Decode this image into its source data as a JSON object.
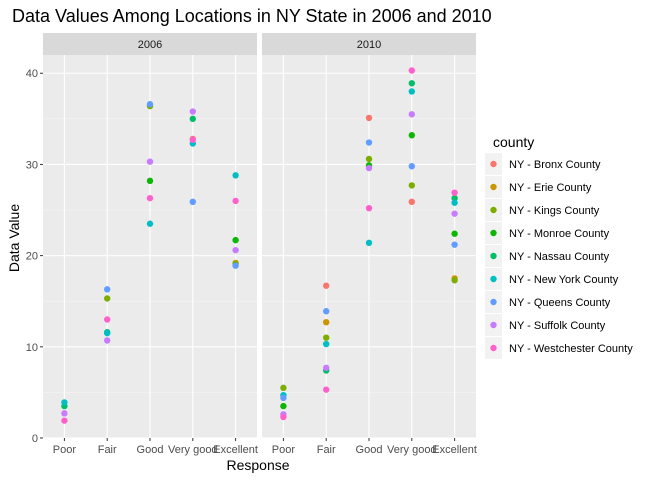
{
  "chart_data": {
    "type": "scatter",
    "title": "Data Values Among Locations in NY State in 2006 and 2010",
    "xlabel": "Response",
    "ylabel": "Data Value",
    "categories": [
      "Poor",
      "Fair",
      "Good",
      "Very good",
      "Excellent"
    ],
    "ylim": [
      0,
      42
    ],
    "yticks": [
      0,
      10,
      20,
      30,
      40
    ],
    "grid": true,
    "legend": {
      "title": "county",
      "position": "right"
    },
    "panels": [
      {
        "label": "2006",
        "series": [
          {
            "name": "NY - Bronx County",
            "color": "#F8766D",
            "values": [
              null,
              null,
              null,
              32.8,
              null
            ]
          },
          {
            "name": "NY - Erie County",
            "color": "#CD9600",
            "values": [
              null,
              null,
              null,
              null,
              19.2
            ]
          },
          {
            "name": "NY - Kings County",
            "color": "#7CAE00",
            "values": [
              null,
              15.3,
              36.4,
              null,
              19.1
            ]
          },
          {
            "name": "NY - Monroe County",
            "color": "#0CB702",
            "values": [
              null,
              null,
              28.2,
              null,
              21.7
            ]
          },
          {
            "name": "NY - Nassau County",
            "color": "#00BE67",
            "values": [
              3.5,
              11.6,
              null,
              35.0,
              null
            ]
          },
          {
            "name": "NY - New York County",
            "color": "#00BFC4",
            "values": [
              3.9,
              11.5,
              23.5,
              32.3,
              28.8
            ]
          },
          {
            "name": "NY - Queens County",
            "color": "#619CFF",
            "values": [
              null,
              16.3,
              36.6,
              25.9,
              18.9
            ]
          },
          {
            "name": "NY - Suffolk County",
            "color": "#C77CFF",
            "values": [
              2.7,
              10.7,
              30.3,
              35.8,
              20.6
            ]
          },
          {
            "name": "NY - Westchester County",
            "color": "#FF61CC",
            "values": [
              1.9,
              13.0,
              26.3,
              32.7,
              26.0
            ]
          }
        ]
      },
      {
        "label": "2010",
        "series": [
          {
            "name": "NY - Bronx County",
            "color": "#F8766D",
            "values": [
              null,
              16.7,
              35.1,
              25.9,
              null
            ]
          },
          {
            "name": "NY - Erie County",
            "color": "#CD9600",
            "values": [
              null,
              12.7,
              null,
              null,
              17.5
            ]
          },
          {
            "name": "NY - Kings County",
            "color": "#7CAE00",
            "values": [
              5.5,
              11.0,
              30.6,
              27.7,
              17.3
            ]
          },
          {
            "name": "NY - Monroe County",
            "color": "#0CB702",
            "values": [
              3.5,
              null,
              29.9,
              33.2,
              22.4
            ]
          },
          {
            "name": "NY - Nassau County",
            "color": "#00BE67",
            "values": [
              null,
              7.4,
              null,
              38.9,
              26.3
            ]
          },
          {
            "name": "NY - New York County",
            "color": "#00BFC4",
            "values": [
              4.7,
              10.3,
              21.4,
              38.0,
              25.8
            ]
          },
          {
            "name": "NY - Queens County",
            "color": "#619CFF",
            "values": [
              4.4,
              13.9,
              32.4,
              29.8,
              21.2
            ]
          },
          {
            "name": "NY - Suffolk County",
            "color": "#C77CFF",
            "values": [
              2.6,
              7.7,
              29.6,
              35.5,
              24.6
            ]
          },
          {
            "name": "NY - Westchester County",
            "color": "#FF61CC",
            "values": [
              2.3,
              5.3,
              25.2,
              40.3,
              26.9
            ]
          }
        ]
      }
    ]
  }
}
